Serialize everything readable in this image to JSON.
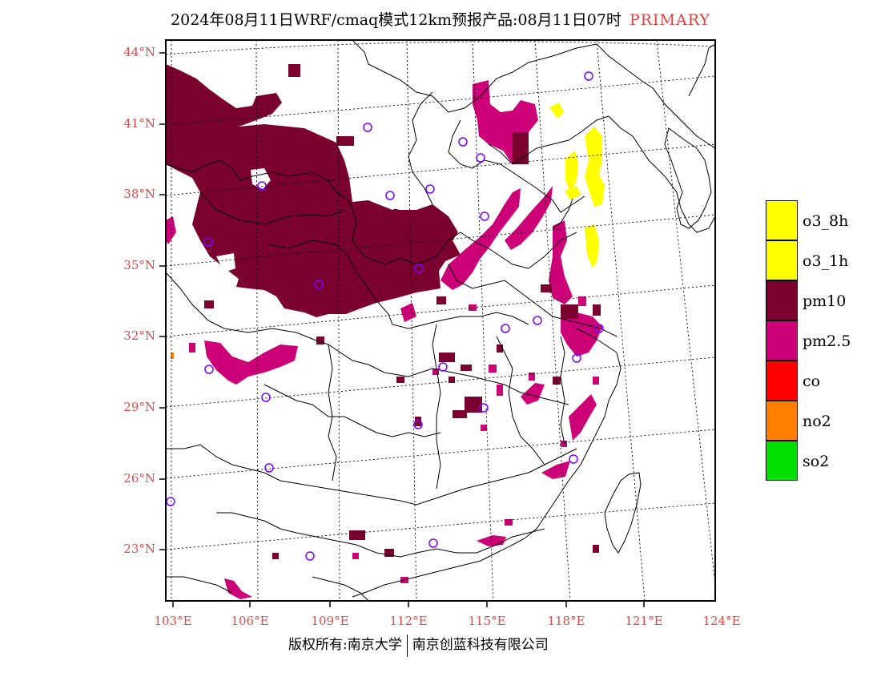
{
  "title": {
    "text": "2024年08月11日WRF/cmaq模式12km预报产品:08月11日07时",
    "tag": "PRIMARY"
  },
  "colors": {
    "o3_8h": "#ffff00",
    "o3_1h": "#ffff00",
    "pm10": "#7a0030",
    "pm25": "#cc0077",
    "co": "#ff0000",
    "no2": "#ff7f00",
    "so2": "#00e000",
    "axis_label": "#e04848",
    "site_marker": "#7a00ff"
  },
  "latitudes": [
    "44°N",
    "41°N",
    "38°N",
    "35°N",
    "32°N",
    "29°N",
    "26°N",
    "23°N"
  ],
  "longitudes": [
    "103°E",
    "106°E",
    "109°E",
    "112°E",
    "115°E",
    "118°E",
    "121°E",
    "124°E"
  ],
  "legend": [
    {
      "label": "o3_8h",
      "color_key": "o3_8h"
    },
    {
      "label": "o3_1h",
      "color_key": "o3_1h"
    },
    {
      "label": "pm10",
      "color_key": "pm10"
    },
    {
      "label": "pm2.5",
      "color_key": "pm25"
    },
    {
      "label": "co",
      "color_key": "co"
    },
    {
      "label": "no2",
      "color_key": "no2"
    },
    {
      "label": "so2",
      "color_key": "so2"
    }
  ],
  "copyright": {
    "left": "版权所有:南京大学",
    "right": "南京创蓝科技有限公司"
  }
}
